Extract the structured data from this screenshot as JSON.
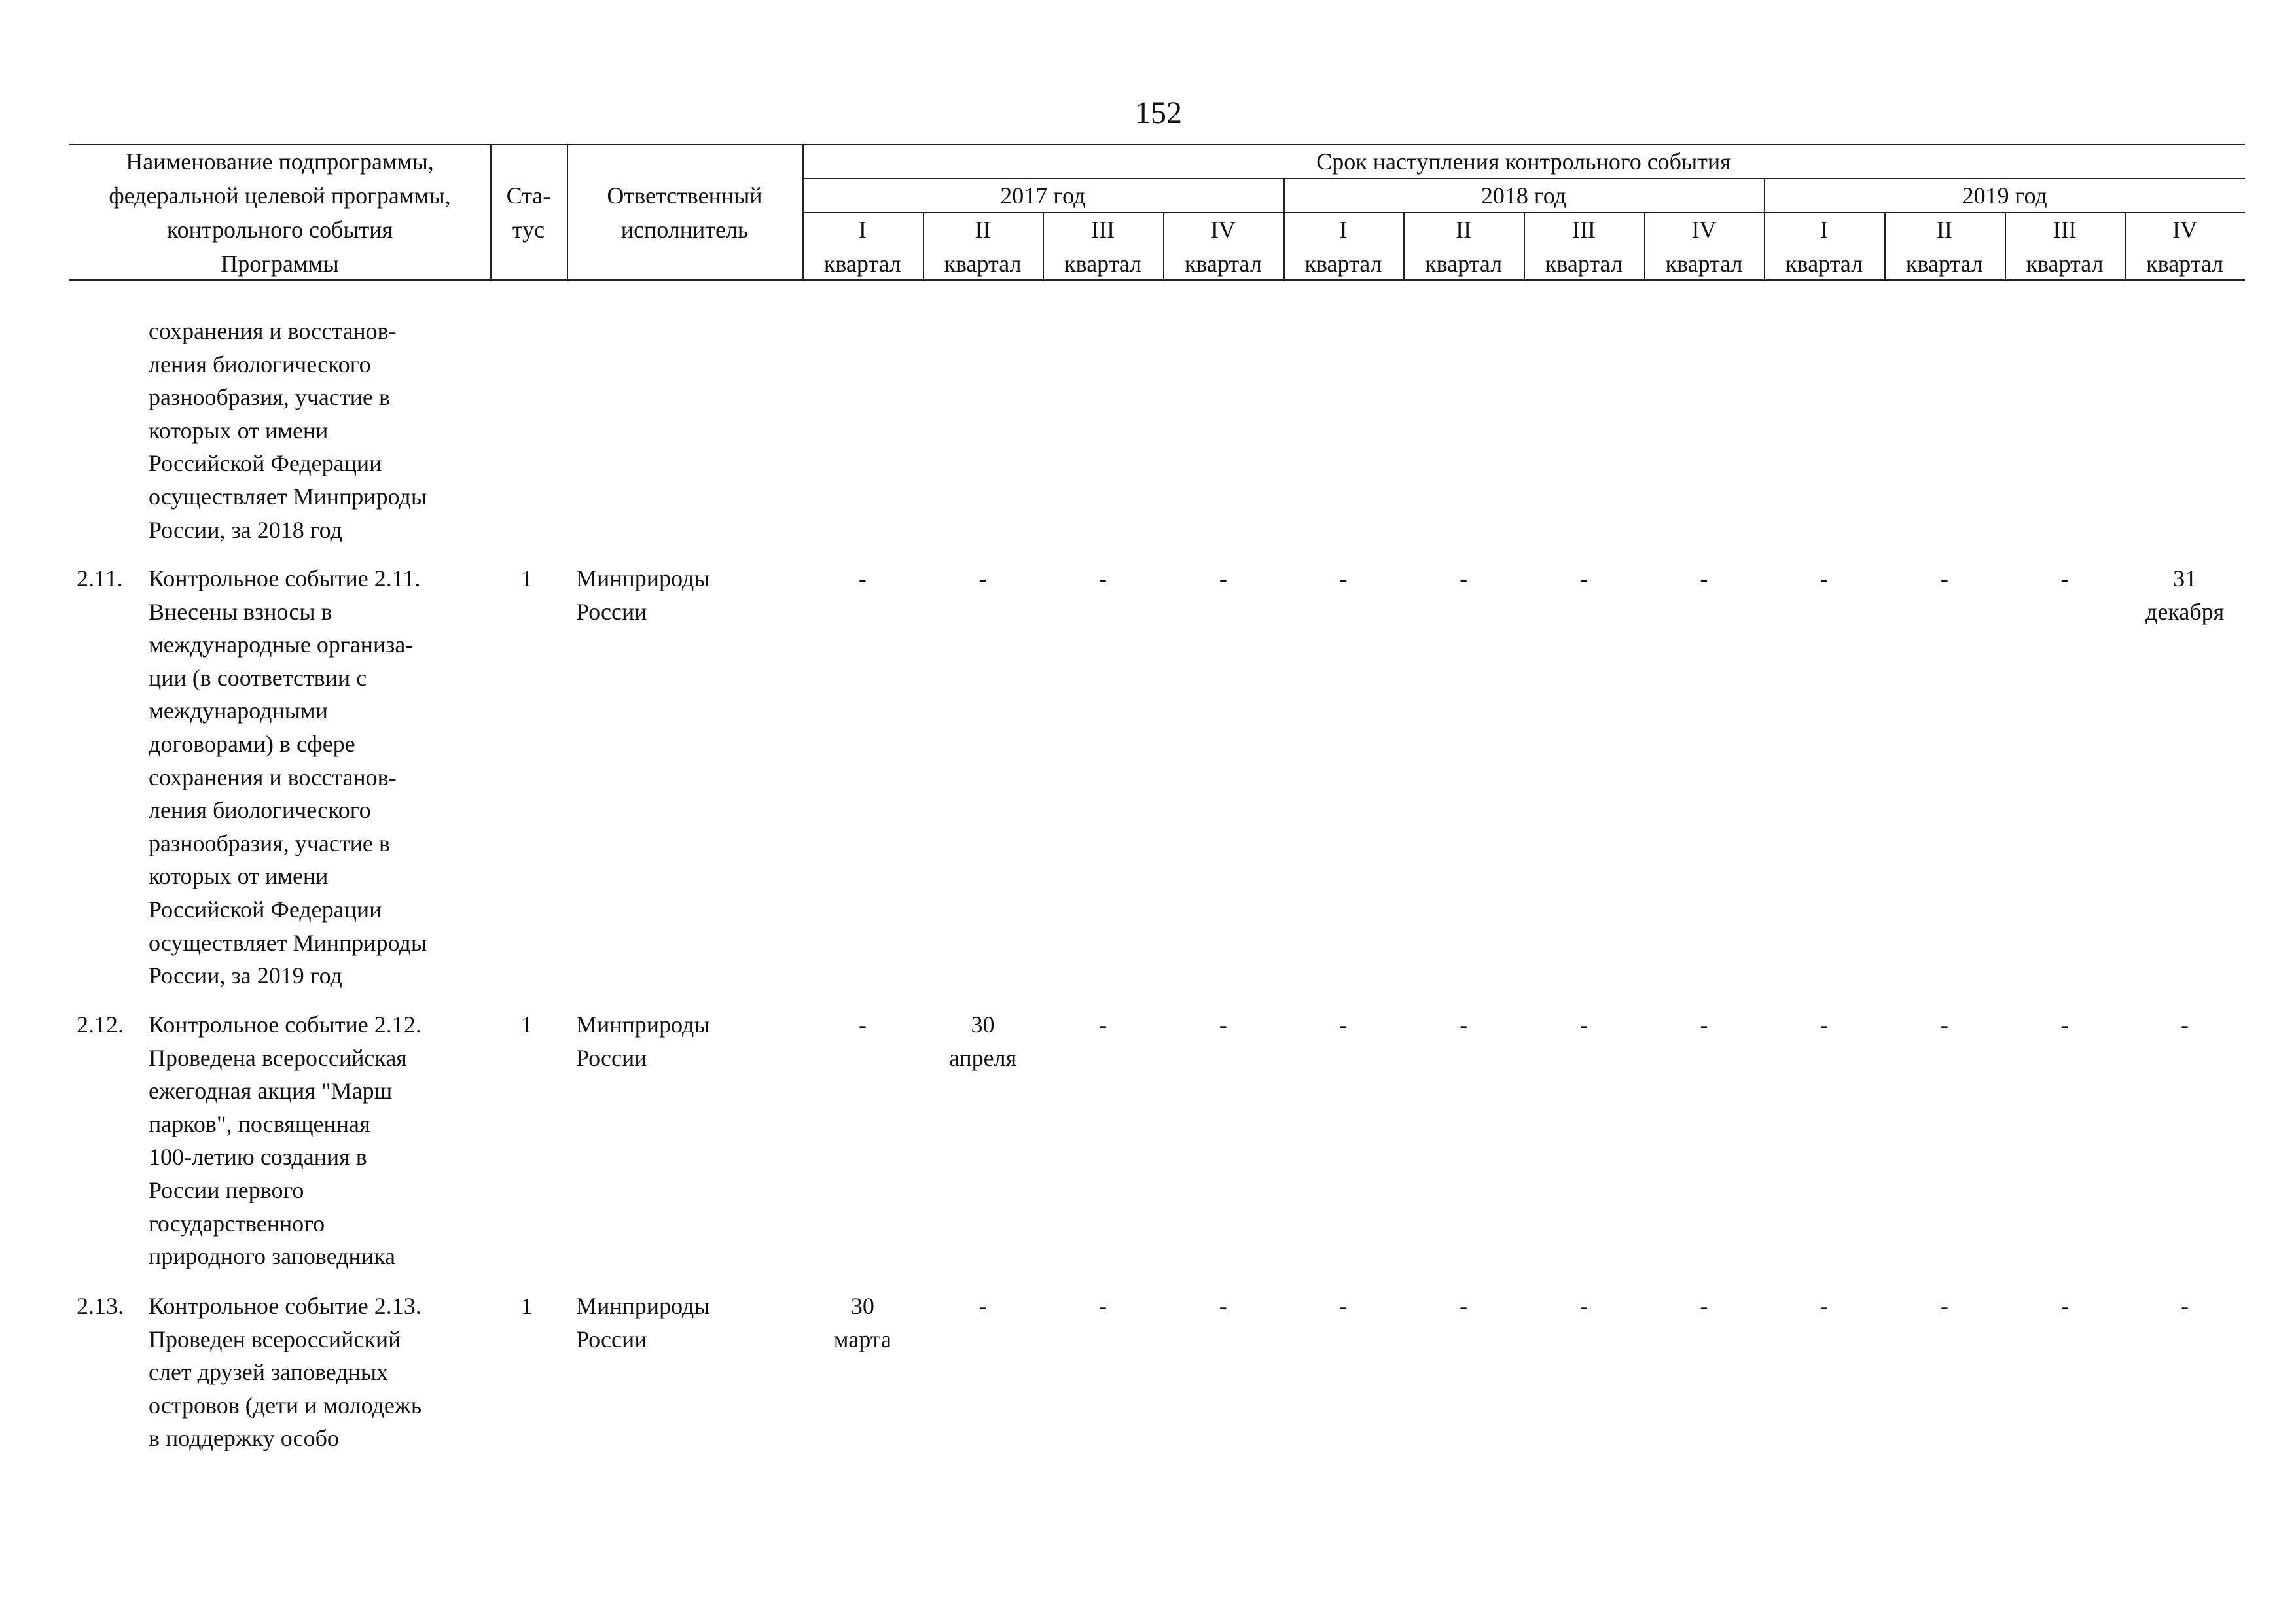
{
  "page_number": "152",
  "table": {
    "header": {
      "name": [
        "Наименование подпрограммы,",
        "федеральной целевой программы,",
        "контрольного события",
        "Программы"
      ],
      "status": [
        "Ста-",
        "тус"
      ],
      "executor": [
        "Ответственный",
        "исполнитель"
      ],
      "period": "Срок наступления контрольного события",
      "years": [
        "2017 год",
        "2018 год",
        "2019 год"
      ],
      "quarters": [
        [
          "I",
          "квартал"
        ],
        [
          "II",
          "квартал"
        ],
        [
          "III",
          "квартал"
        ],
        [
          "IV",
          "квартал"
        ],
        [
          "I",
          "квартал"
        ],
        [
          "II",
          "квартал"
        ],
        [
          "III",
          "квартал"
        ],
        [
          "IV",
          "квартал"
        ],
        [
          "I",
          "квартал"
        ],
        [
          "II",
          "квартал"
        ],
        [
          "III",
          "квартал"
        ],
        [
          "IV",
          "квартал"
        ]
      ]
    },
    "rows": [
      {
        "name": [
          "сохранения и восстанов-",
          "ления биологического",
          "разнообразия, участие в",
          "которых от имени",
          "Российской Федерации",
          "осуществляет Минприроды",
          "России, за 2018 год"
        ]
      },
      {
        "number": "2.11.",
        "name": [
          "Контрольное событие 2.11.",
          "Внесены взносы в",
          "международные организа-",
          "ции (в соответствии с",
          "международными",
          "договорами) в сфере",
          "сохранения и восстанов-",
          "ления биологического",
          "разнообразия, участие в",
          "которых от имени",
          "Российской Федерации",
          "осуществляет Минприроды",
          "России, за 2019 год"
        ],
        "status": "1",
        "executor": [
          "Минприроды",
          "России"
        ],
        "quarters": [
          [
            "-"
          ],
          [
            "-"
          ],
          [
            "-"
          ],
          [
            "-"
          ],
          [
            "-"
          ],
          [
            "-"
          ],
          [
            "-"
          ],
          [
            "-"
          ],
          [
            "-"
          ],
          [
            "-"
          ],
          [
            "-"
          ],
          [
            "31",
            "декабря"
          ]
        ]
      },
      {
        "number": "2.12.",
        "name": [
          "Контрольное событие 2.12.",
          "Проведена всероссийская",
          "ежегодная акция \"Марш",
          "парков\", посвященная",
          "100-летию создания в",
          "России первого",
          "государственного",
          "природного заповедника"
        ],
        "status": "1",
        "executor": [
          "Минприроды",
          "России"
        ],
        "quarters": [
          [
            "-"
          ],
          [
            "30",
            "апреля"
          ],
          [
            "-"
          ],
          [
            "-"
          ],
          [
            "-"
          ],
          [
            "-"
          ],
          [
            "-"
          ],
          [
            "-"
          ],
          [
            "-"
          ],
          [
            "-"
          ],
          [
            "-"
          ],
          [
            "-"
          ]
        ]
      },
      {
        "number": "2.13.",
        "name": [
          "Контрольное событие 2.13.",
          "Проведен всероссийский",
          "слет друзей заповедных",
          "островов (дети и молодежь",
          "в поддержку особо"
        ],
        "status": "1",
        "executor": [
          "Минприроды",
          "России"
        ],
        "quarters": [
          [
            "30",
            "марта"
          ],
          [
            "-"
          ],
          [
            "-"
          ],
          [
            "-"
          ],
          [
            "-"
          ],
          [
            "-"
          ],
          [
            "-"
          ],
          [
            "-"
          ],
          [
            "-"
          ],
          [
            "-"
          ],
          [
            "-"
          ],
          [
            "-"
          ]
        ]
      }
    ]
  }
}
